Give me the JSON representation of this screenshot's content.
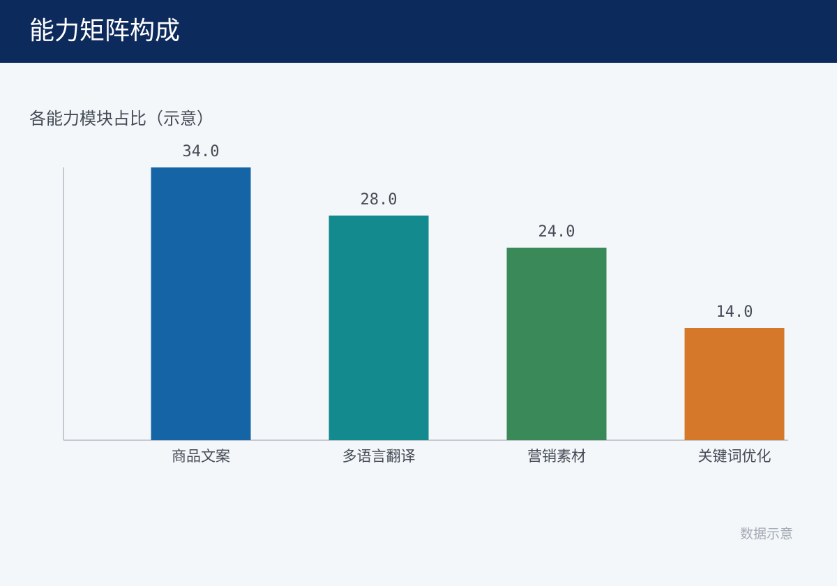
{
  "header": {
    "title": "能力矩阵构成"
  },
  "chart_data": {
    "type": "bar",
    "title": "各能力模块占比（示意）",
    "categories": [
      "商品文案",
      "多语言翻译",
      "营销素材",
      "关键词优化"
    ],
    "values": [
      34,
      28,
      24,
      14
    ],
    "value_labels": [
      "34.0",
      "28.0",
      "24.0",
      "14.0"
    ],
    "colors": [
      "#1565a6",
      "#138a8e",
      "#3a8a59",
      "#d6782a"
    ],
    "ylim": [
      0,
      34
    ]
  },
  "footnote": "数据示意"
}
